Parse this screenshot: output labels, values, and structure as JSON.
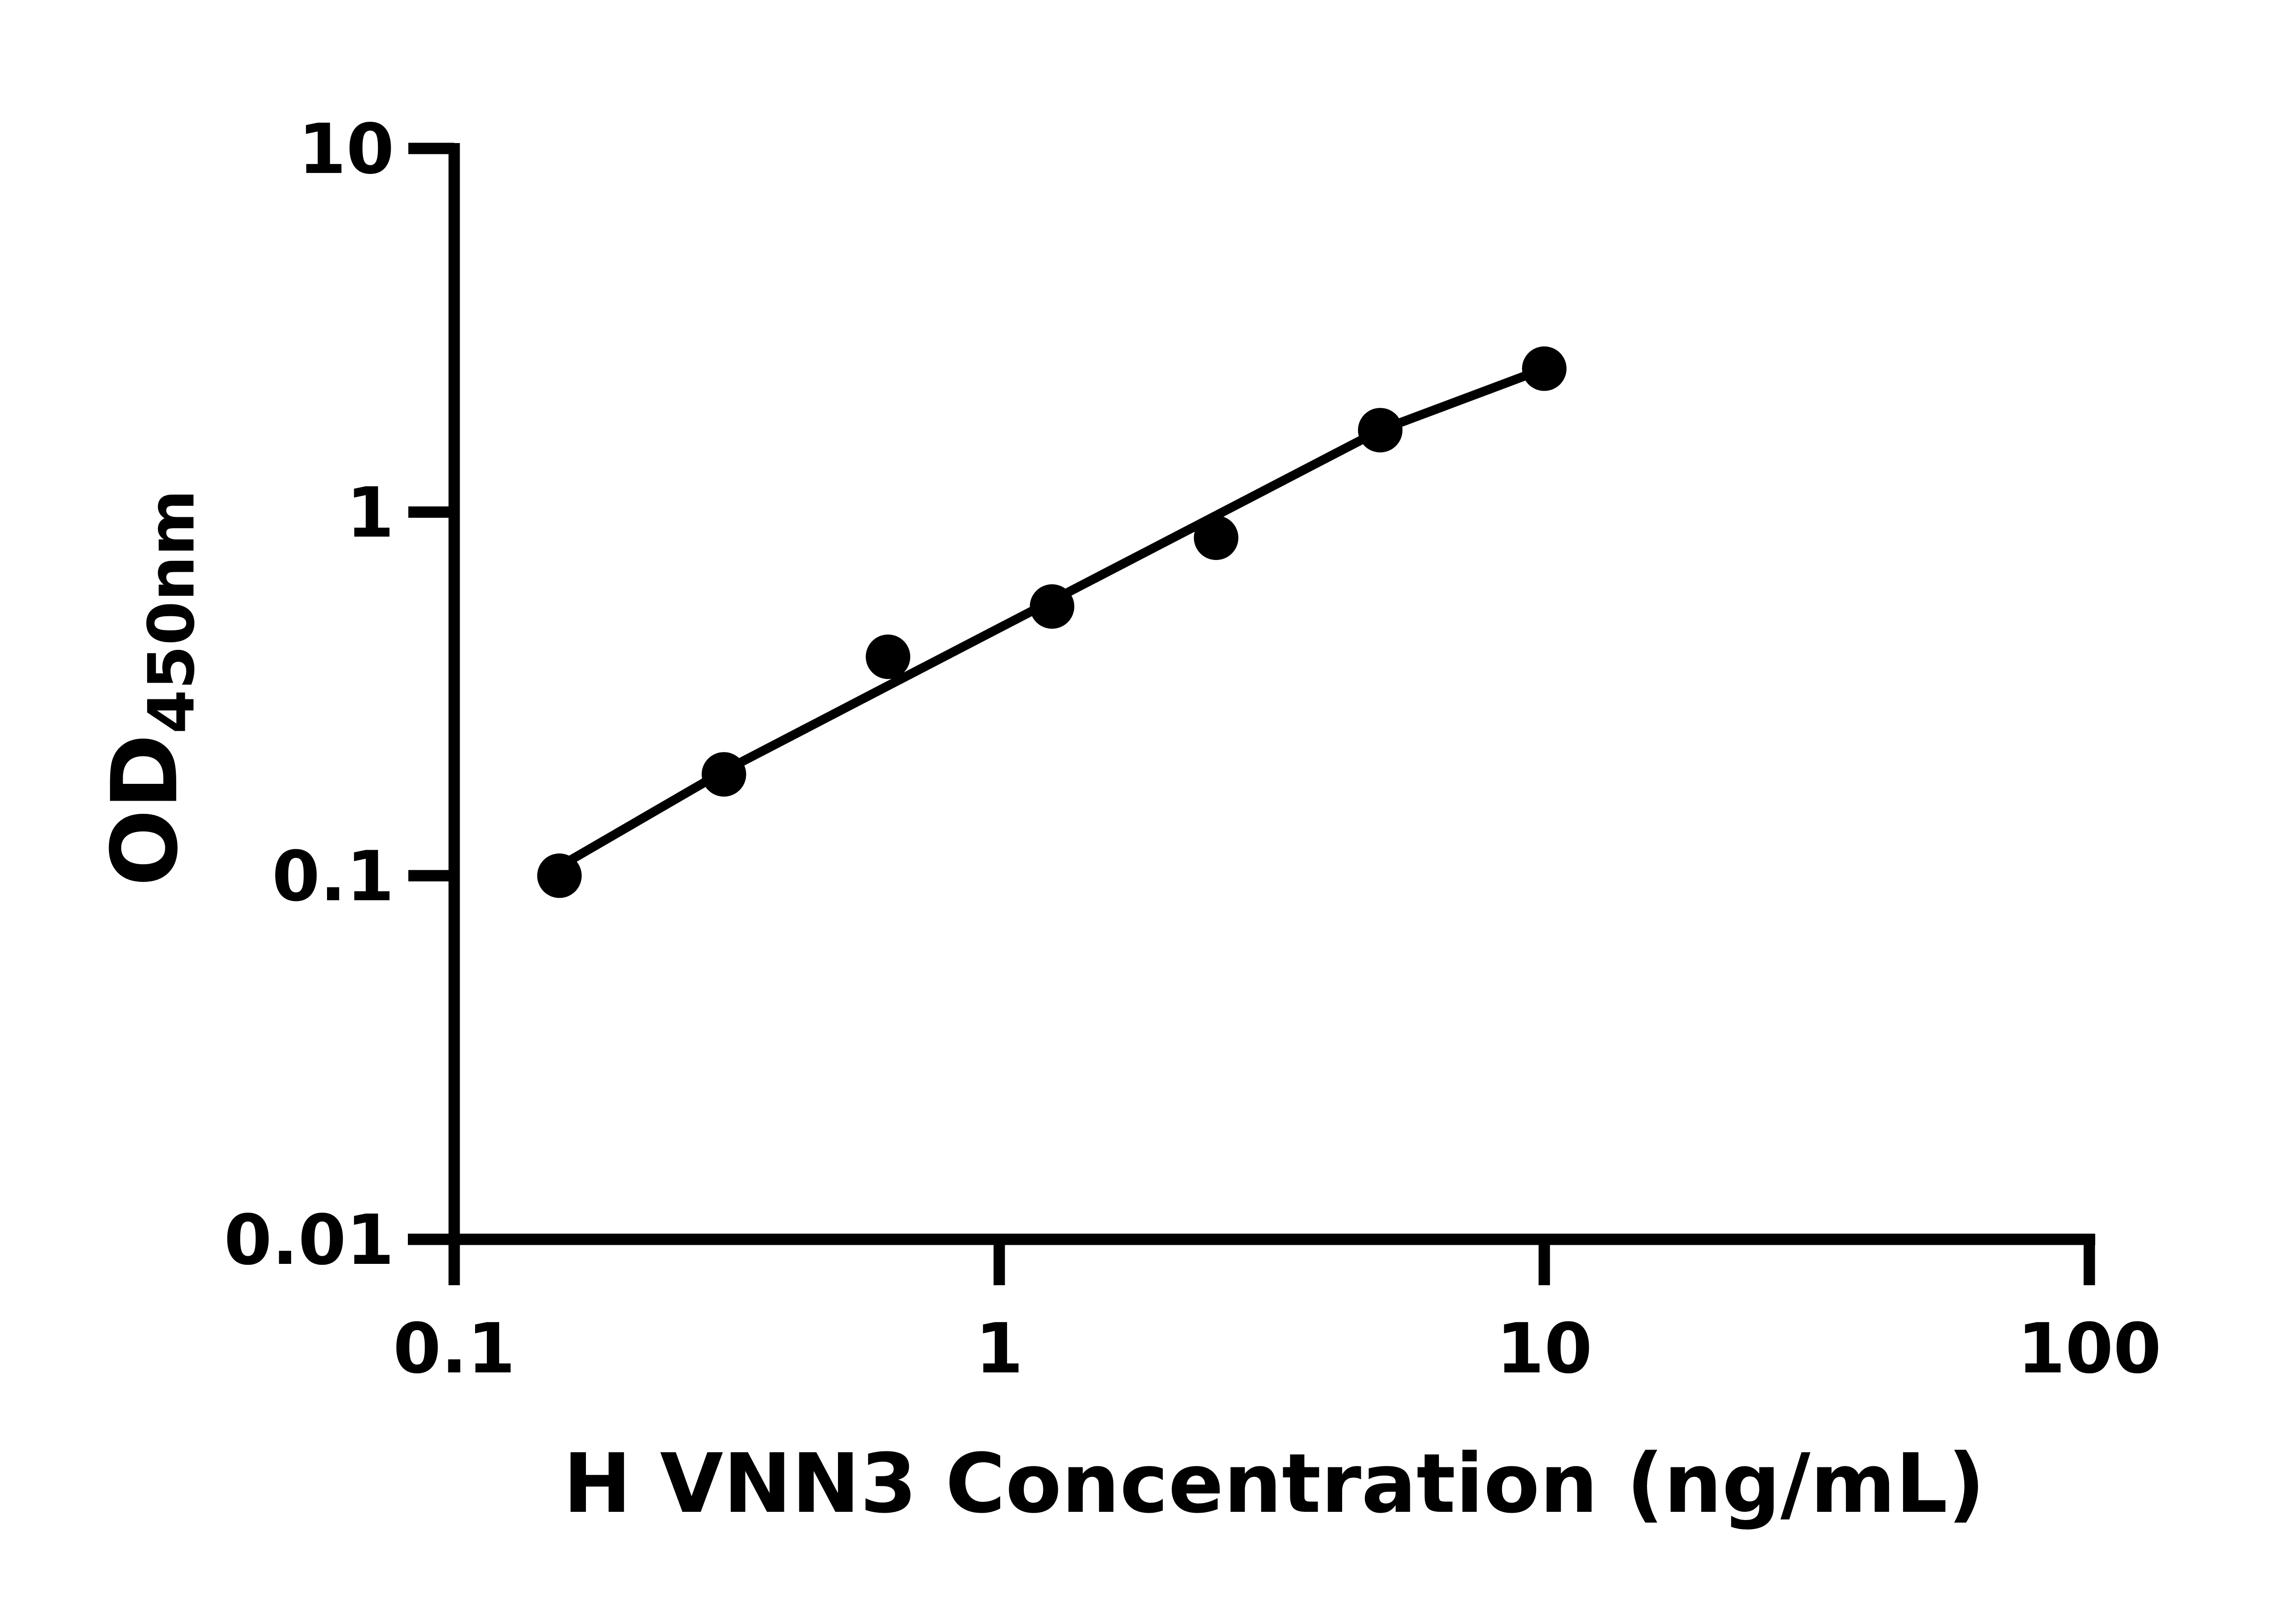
{
  "figure": {
    "background_color": "#ffffff",
    "ink_color": "#000000"
  },
  "chart_data": {
    "type": "scatter",
    "title": "",
    "xlabel": "H VNN3 Concentration (ng/mL)",
    "ylabel": "OD450nm",
    "ylabel_main": "OD",
    "ylabel_subscript": "450nm",
    "x_scale": "log10",
    "y_scale": "log10",
    "xlim": [
      0.1,
      100
    ],
    "ylim": [
      0.01,
      10
    ],
    "x_tick_labels": [
      "0.1",
      "1",
      "10",
      "100"
    ],
    "x_tick_values": [
      0.1,
      1,
      10,
      100
    ],
    "y_tick_labels": [
      "10",
      "1",
      "0.1",
      "0.01"
    ],
    "y_tick_values": [
      10,
      1,
      0.1,
      0.01
    ],
    "grid": false,
    "legend": "none",
    "marker": "filled-circle",
    "marker_color": "#000000",
    "line_color": "#000000",
    "points": [
      {
        "x": 0.156,
        "y": 0.1
      },
      {
        "x": 0.3125,
        "y": 0.19
      },
      {
        "x": 0.625,
        "y": 0.4
      },
      {
        "x": 1.25,
        "y": 0.55
      },
      {
        "x": 2.5,
        "y": 0.85
      },
      {
        "x": 5,
        "y": 1.68
      },
      {
        "x": 10,
        "y": 2.48
      }
    ],
    "fit_curve": [
      {
        "x": 0.156,
        "y": 0.106
      },
      {
        "x": 0.3125,
        "y": 0.194
      },
      {
        "x": 0.625,
        "y": 0.333
      },
      {
        "x": 1.25,
        "y": 0.571
      },
      {
        "x": 2.5,
        "y": 0.979
      },
      {
        "x": 5,
        "y": 1.68
      },
      {
        "x": 10,
        "y": 2.48
      }
    ]
  }
}
